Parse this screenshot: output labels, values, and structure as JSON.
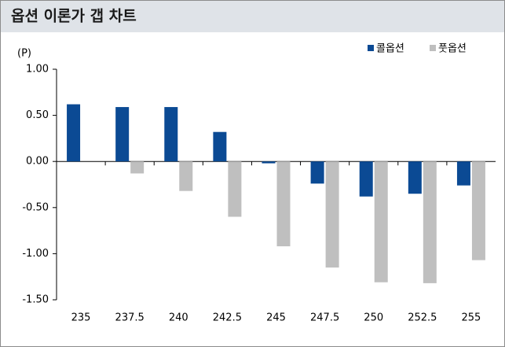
{
  "chart_data": {
    "type": "bar",
    "title": "옵션 이론가 갭 차트",
    "y_label": "(P)",
    "categories": [
      "235",
      "237.5",
      "240",
      "242.5",
      "245",
      "247.5",
      "250",
      "252.5",
      "255"
    ],
    "series": [
      {
        "name": "콜옵션",
        "color": "#0b4a94",
        "values": [
          0.62,
          0.59,
          0.59,
          0.32,
          -0.02,
          -0.24,
          -0.38,
          -0.35,
          -0.26
        ]
      },
      {
        "name": "풋옵션",
        "color": "#bfbfbf",
        "values": [
          null,
          -0.13,
          -0.32,
          -0.6,
          -0.92,
          -1.15,
          -1.31,
          -1.32,
          -1.07
        ]
      }
    ],
    "ylim": [
      -1.5,
      1
    ],
    "yticks": [
      {
        "value": 1,
        "label": "1.00"
      },
      {
        "value": 0.5,
        "label": "0.50"
      },
      {
        "value": 0,
        "label": "0.00"
      },
      {
        "value": -0.5,
        "label": "-0.50"
      },
      {
        "value": -1,
        "label": "-1.00"
      },
      {
        "value": -1.5,
        "label": "-1.50"
      }
    ],
    "legend": "top-right",
    "grid": false
  }
}
